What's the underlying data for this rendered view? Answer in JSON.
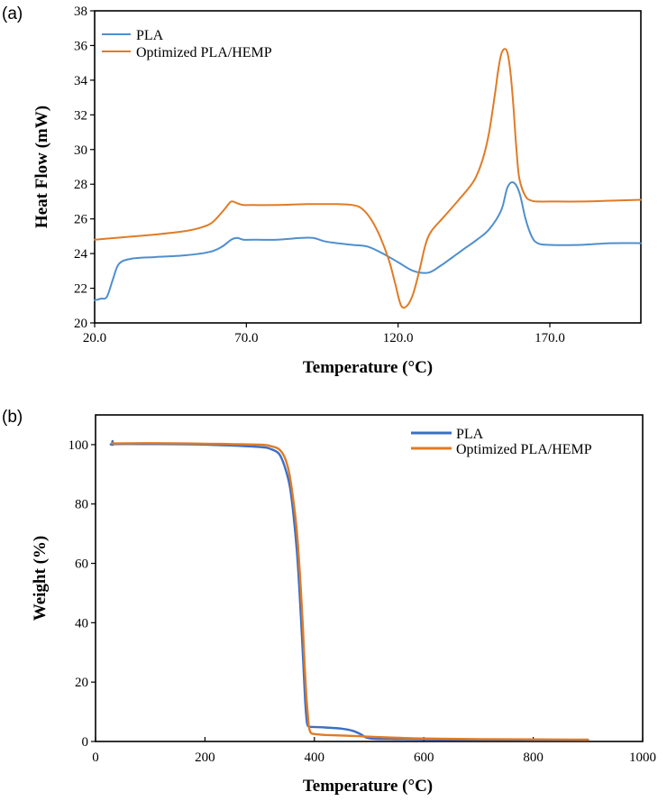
{
  "chart_data": [
    {
      "panel": "(a)",
      "type": "line",
      "xlabel": "Temperature (°C)",
      "ylabel": "Heat Flow (mW)",
      "xlim": [
        20,
        200
      ],
      "ylim": [
        20,
        38
      ],
      "xticks": [
        20,
        70,
        120,
        170
      ],
      "xtick_labels": [
        "20.0",
        "70.0",
        "120.0",
        "170.0"
      ],
      "yticks": [
        20,
        22,
        24,
        26,
        28,
        30,
        32,
        34,
        36,
        38
      ],
      "legend_position": "top-left",
      "series": [
        {
          "name": "PLA",
          "color": "#4f8fcf",
          "x": [
            20,
            22,
            24,
            26,
            28,
            32,
            40,
            50,
            58,
            62,
            65,
            67,
            69,
            72,
            80,
            88,
            92,
            96,
            100,
            105,
            110,
            115,
            120,
            125,
            130,
            134,
            138,
            142,
            146,
            150,
            154,
            156,
            158,
            160,
            162,
            164,
            166,
            170,
            180,
            190,
            200
          ],
          "y": [
            21.3,
            21.4,
            21.5,
            22.5,
            23.4,
            23.7,
            23.8,
            23.9,
            24.1,
            24.4,
            24.8,
            24.9,
            24.8,
            24.8,
            24.8,
            24.9,
            24.9,
            24.7,
            24.6,
            24.5,
            24.4,
            24.0,
            23.5,
            23.0,
            22.9,
            23.3,
            23.8,
            24.3,
            24.8,
            25.4,
            26.5,
            27.8,
            28.1,
            27.5,
            26.0,
            25.0,
            24.6,
            24.5,
            24.5,
            24.6,
            24.6
          ]
        },
        {
          "name": "Optimized PLA/HEMP",
          "color": "#e07b25",
          "x": [
            20,
            30,
            40,
            50,
            55,
            58,
            60,
            63,
            65,
            67,
            69,
            72,
            80,
            90,
            100,
            105,
            108,
            111,
            114,
            117,
            119,
            121,
            123,
            125,
            127,
            129,
            131,
            135,
            140,
            145,
            148,
            150,
            152,
            153,
            154,
            155,
            156,
            157,
            158,
            159,
            160,
            162,
            164,
            166,
            170,
            180,
            190,
            200
          ],
          "y": [
            24.8,
            24.95,
            25.1,
            25.3,
            25.5,
            25.7,
            26.0,
            26.6,
            27.0,
            26.9,
            26.8,
            26.8,
            26.8,
            26.85,
            26.85,
            26.8,
            26.6,
            26.0,
            25.0,
            23.6,
            22.3,
            21.0,
            21.0,
            21.7,
            23.0,
            24.5,
            25.3,
            26.1,
            27.1,
            28.2,
            29.5,
            31.0,
            33.3,
            34.6,
            35.5,
            35.8,
            35.6,
            34.5,
            32.5,
            30.0,
            28.3,
            27.3,
            27.05,
            27.0,
            27.0,
            27.0,
            27.05,
            27.1
          ]
        }
      ]
    },
    {
      "panel": "(b)",
      "type": "line",
      "xlabel": "Temperature (°C)",
      "ylabel": "Weight (%)",
      "xlim": [
        0,
        1000
      ],
      "ylim": [
        0,
        110
      ],
      "xticks": [
        0,
        200,
        400,
        600,
        800,
        1000
      ],
      "yticks": [
        0,
        20,
        40,
        60,
        80,
        100
      ],
      "legend_position": "top-right",
      "series": [
        {
          "name": "PLA",
          "color": "#3d6fc4",
          "x": [
            30,
            31,
            32,
            33,
            100,
            200,
            300,
            320,
            335,
            345,
            355,
            362,
            368,
            372,
            376,
            380,
            383,
            386,
            388,
            390,
            395,
            420,
            450,
            470,
            485,
            495,
            510,
            550,
            600,
            700,
            800,
            900
          ],
          "y": [
            100,
            101.2,
            100,
            100.2,
            100.2,
            100,
            99.2,
            98.5,
            97,
            93,
            86,
            76,
            64,
            53,
            40,
            25,
            14,
            7,
            5.3,
            5.0,
            4.9,
            4.7,
            4.3,
            3.6,
            2.4,
            1.3,
            0.9,
            0.8,
            0.7,
            0.6,
            0.5,
            0.5
          ]
        },
        {
          "name": "Optimized PLA/HEMP",
          "color": "#e07b25",
          "x": [
            30,
            100,
            200,
            300,
            320,
            335,
            345,
            352,
            358,
            365,
            370,
            375,
            379,
            382,
            385,
            388,
            390,
            393,
            397,
            405,
            420,
            450,
            480,
            500,
            530,
            600,
            700,
            800,
            900
          ],
          "y": [
            100.4,
            100.5,
            100.3,
            100,
            99.5,
            98.5,
            96,
            92,
            86,
            76,
            66,
            52,
            38,
            26,
            16,
            9,
            5,
            3,
            2.6,
            2.4,
            2.2,
            2.0,
            1.8,
            1.6,
            1.4,
            1.0,
            0.8,
            0.7,
            0.6
          ]
        }
      ]
    }
  ]
}
